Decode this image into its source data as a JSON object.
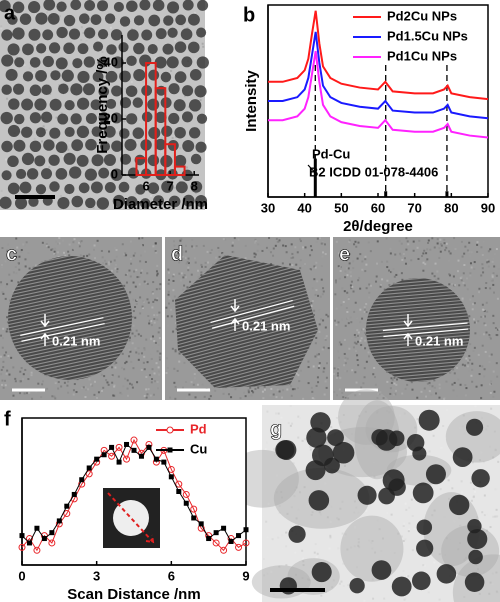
{
  "chart_data": [
    {
      "type": "histogram",
      "panel": "a",
      "xlabel": "Diameter /nm",
      "ylabel": "Frequency /%",
      "bins": [
        5.6,
        6.0,
        6.4,
        6.8,
        7.2,
        7.6
      ],
      "values": [
        6,
        40,
        31,
        11,
        3
      ],
      "color": "#e0201b",
      "xlim": [
        5,
        8.2
      ],
      "ylim": [
        0,
        50
      ],
      "xticks": [
        6,
        7,
        8
      ],
      "yticks": [
        0,
        20,
        40
      ],
      "frame": false
    },
    {
      "type": "line",
      "panel": "b",
      "xlabel": "2θ/degree",
      "ylabel": "Intensity",
      "x": [
        30,
        34,
        38,
        40,
        41,
        42,
        43,
        44,
        45,
        47,
        50,
        55,
        60,
        62,
        64,
        70,
        75,
        78,
        79,
        80,
        85,
        90
      ],
      "series": [
        {
          "name": "Pd2Cu NPs",
          "color": "#ff1a1a",
          "values": [
            0.6,
            0.6,
            0.62,
            0.66,
            0.72,
            0.85,
            0.97,
            0.8,
            0.68,
            0.62,
            0.59,
            0.57,
            0.56,
            0.6,
            0.55,
            0.54,
            0.54,
            0.56,
            0.58,
            0.54,
            0.52,
            0.51
          ]
        },
        {
          "name": "Pd1.5Cu NPs",
          "color": "#1a1aff",
          "values": [
            0.5,
            0.5,
            0.52,
            0.56,
            0.62,
            0.74,
            0.86,
            0.7,
            0.58,
            0.52,
            0.49,
            0.47,
            0.46,
            0.5,
            0.45,
            0.44,
            0.44,
            0.46,
            0.48,
            0.44,
            0.42,
            0.41
          ]
        },
        {
          "name": "Pd1Cu NPs",
          "color": "#ff22ff",
          "values": [
            0.4,
            0.4,
            0.42,
            0.46,
            0.52,
            0.64,
            0.76,
            0.6,
            0.48,
            0.42,
            0.39,
            0.37,
            0.36,
            0.4,
            0.35,
            0.34,
            0.34,
            0.36,
            0.38,
            0.34,
            0.32,
            0.31
          ]
        }
      ],
      "reference": {
        "name": "Pd-Cu",
        "label": "B2 ICDD 01-078-4406",
        "x": [
          42.9,
          62.1,
          78.8
        ],
        "values": [
          0.2,
          0.03,
          0.03
        ]
      },
      "xlim": [
        30,
        90
      ],
      "ylim": [
        0,
        1
      ],
      "xticks": [
        30,
        40,
        50,
        60,
        70,
        80,
        90
      ],
      "frame": true
    },
    {
      "type": "line",
      "panel": "f",
      "xlabel": "Scan Distance /nm",
      "x": [
        0,
        0.3,
        0.6,
        0.9,
        1.2,
        1.5,
        1.8,
        2.1,
        2.4,
        2.7,
        3.0,
        3.3,
        3.6,
        3.9,
        4.2,
        4.5,
        4.8,
        5.1,
        5.4,
        5.7,
        6.0,
        6.3,
        6.6,
        6.9,
        7.2,
        7.5,
        7.8,
        8.1,
        8.4,
        8.7,
        9.0
      ],
      "series": [
        {
          "name": "Pd",
          "color": "#e8262a",
          "marker": "circle-open",
          "values": [
            0.12,
            0.18,
            0.1,
            0.2,
            0.15,
            0.28,
            0.35,
            0.45,
            0.55,
            0.62,
            0.7,
            0.78,
            0.74,
            0.8,
            0.72,
            0.85,
            0.76,
            0.82,
            0.7,
            0.78,
            0.65,
            0.55,
            0.48,
            0.38,
            0.25,
            0.2,
            0.15,
            0.1,
            0.18,
            0.12,
            0.15
          ]
        },
        {
          "name": "Cu",
          "color": "#000000",
          "marker": "square",
          "values": [
            0.2,
            0.15,
            0.25,
            0.18,
            0.22,
            0.3,
            0.4,
            0.48,
            0.58,
            0.66,
            0.72,
            0.75,
            0.8,
            0.7,
            0.82,
            0.78,
            0.74,
            0.8,
            0.72,
            0.7,
            0.6,
            0.5,
            0.42,
            0.32,
            0.28,
            0.18,
            0.22,
            0.25,
            0.16,
            0.2,
            0.24
          ]
        }
      ],
      "xlim": [
        0,
        9
      ],
      "ylim": [
        0,
        1
      ],
      "xticks": [
        0,
        3,
        6,
        9
      ],
      "frame": true
    }
  ],
  "images": [
    {
      "panel": "c",
      "spacing": "0.21 nm"
    },
    {
      "panel": "d",
      "spacing": "0.21 nm"
    },
    {
      "panel": "e",
      "spacing": "0.21 nm"
    },
    {
      "panel": "g"
    }
  ]
}
